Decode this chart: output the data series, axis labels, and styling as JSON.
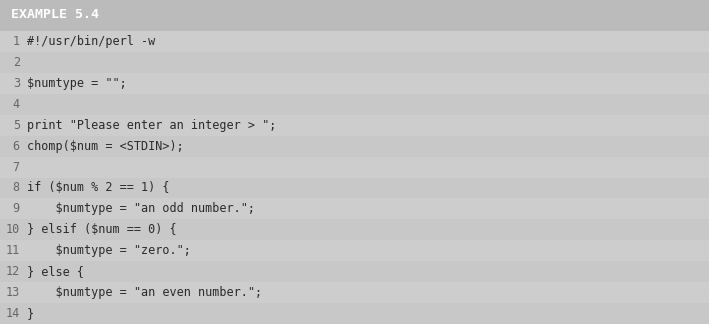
{
  "title": "EXAMPLE 5.4",
  "title_bg": "#8B1010",
  "title_fg": "#FFFFFF",
  "body_bg_odd": "#CDCDCD",
  "body_bg_even": "#C8C8C8",
  "separator_color": "#AAAAAA",
  "line_number_color": "#666666",
  "code_color": "#2B2B2B",
  "outer_bg": "#BBBBBB",
  "lines": [
    {
      "num": "1",
      "indent": 0,
      "text": "#!/usr/bin/perl -w"
    },
    {
      "num": "2",
      "indent": 0,
      "text": ""
    },
    {
      "num": "3",
      "indent": 0,
      "text": "$numtype = \"\";"
    },
    {
      "num": "4",
      "indent": 0,
      "text": ""
    },
    {
      "num": "5",
      "indent": 0,
      "text": "print \"Please enter an integer > \";"
    },
    {
      "num": "6",
      "indent": 0,
      "text": "chomp($num = <STDIN>);"
    },
    {
      "num": "7",
      "indent": 0,
      "text": ""
    },
    {
      "num": "8",
      "indent": 0,
      "text": "if ($num % 2 == 1) {"
    },
    {
      "num": "9",
      "indent": 1,
      "text": "$numtype = \"an odd number.\";"
    },
    {
      "num": "10",
      "indent": 0,
      "text": "} elsif ($num == 0) {"
    },
    {
      "num": "11",
      "indent": 1,
      "text": "$numtype = \"zero.\";"
    },
    {
      "num": "12",
      "indent": 0,
      "text": "} else {"
    },
    {
      "num": "13",
      "indent": 1,
      "text": "$numtype = \"an even number.\";"
    },
    {
      "num": "14",
      "indent": 0,
      "text": "}"
    }
  ],
  "font_family": "monospace",
  "title_fontsize": 9.5,
  "code_fontsize": 8.5,
  "linenum_fontsize": 8.5,
  "indent_spaces": "    "
}
